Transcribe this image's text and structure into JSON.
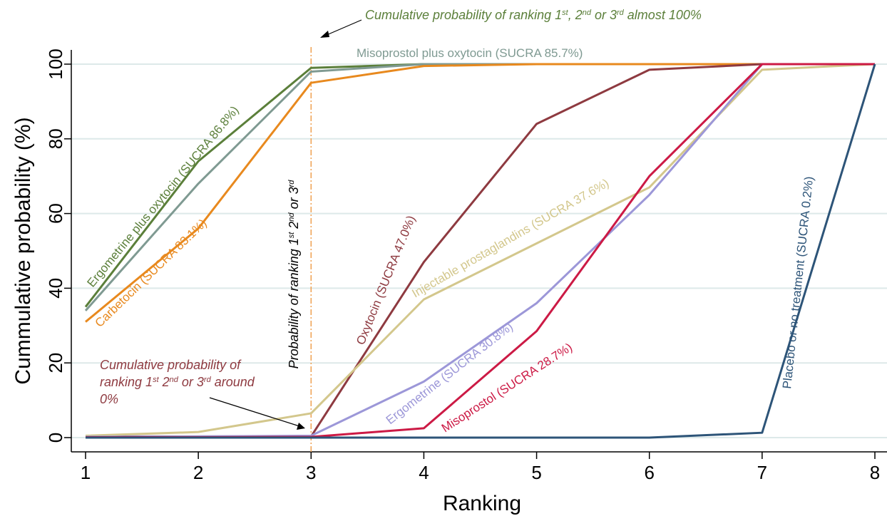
{
  "chart_data": {
    "type": "line",
    "xlabel": "Ranking",
    "ylabel": "Cummulative probability (%)",
    "x": [
      1,
      2,
      3,
      4,
      5,
      6,
      7,
      8
    ],
    "xlim": [
      1,
      8
    ],
    "ylim": [
      0,
      100
    ],
    "x_ticks": [
      "1",
      "2",
      "3",
      "4",
      "5",
      "6",
      "7",
      "8"
    ],
    "y_ticks": [
      "0",
      "20",
      "40",
      "60",
      "80",
      "100"
    ],
    "grid": "horizontal",
    "series": [
      {
        "name": "Ergometrine plus oxytocin (SUCRA 86.8%)",
        "color": "#5b7f3a",
        "values": [
          35,
          74,
          99,
          100,
          100,
          100,
          100,
          100
        ]
      },
      {
        "name": "Misoprostol plus oxytocin (SUCRA 85.7%)",
        "color": "#7f9a92",
        "values": [
          34,
          68,
          98,
          100,
          100,
          100,
          100,
          100
        ]
      },
      {
        "name": "Carbetocin (SUCRA 83.1%)",
        "color": "#e8891e",
        "values": [
          31,
          56,
          95,
          99.5,
          100,
          100,
          100,
          100
        ]
      },
      {
        "name": "Oxytocin (SUCRA 47.0%)",
        "color": "#8e3a40",
        "values": [
          0.3,
          0.3,
          0.3,
          47,
          84,
          98.5,
          100,
          100
        ]
      },
      {
        "name": "Injectable prostaglandins (SUCRA 37.6%)",
        "color": "#d3c78c",
        "values": [
          0.5,
          1.5,
          6.5,
          37,
          52,
          67,
          98.5,
          100
        ]
      },
      {
        "name": "Ergometrine (SUCRA 30.8%)",
        "color": "#9c97d8",
        "values": [
          0.2,
          0.3,
          0.5,
          15,
          36,
          65,
          100,
          100
        ]
      },
      {
        "name": "Misoprostol (SUCRA 28.7%)",
        "color": "#cc1a45",
        "values": [
          0.1,
          0.1,
          0.2,
          2.5,
          28.5,
          70,
          100,
          100
        ]
      },
      {
        "name": "Placebo or no treatment (SUCRA 0.2%)",
        "color": "#2d5478",
        "values": [
          0,
          0,
          0,
          0,
          0,
          0,
          1.3,
          100
        ]
      }
    ],
    "reference_line": {
      "x": 3,
      "color": "#f0a050",
      "label": "Probability of ranking 1st 2nd or 3rd"
    },
    "annotations": {
      "top": "Cumulative probability of ranking 1st, 2nd or 3rd almost 100%",
      "bottom_line1": "Cumulative probability of",
      "bottom_line2": "ranking 1st 2nd or 3rd around",
      "bottom_line3": "0%"
    },
    "annotation_colors": {
      "top": "#5b7f3a",
      "bottom": "#8e3a40",
      "reference": "#000000"
    }
  }
}
